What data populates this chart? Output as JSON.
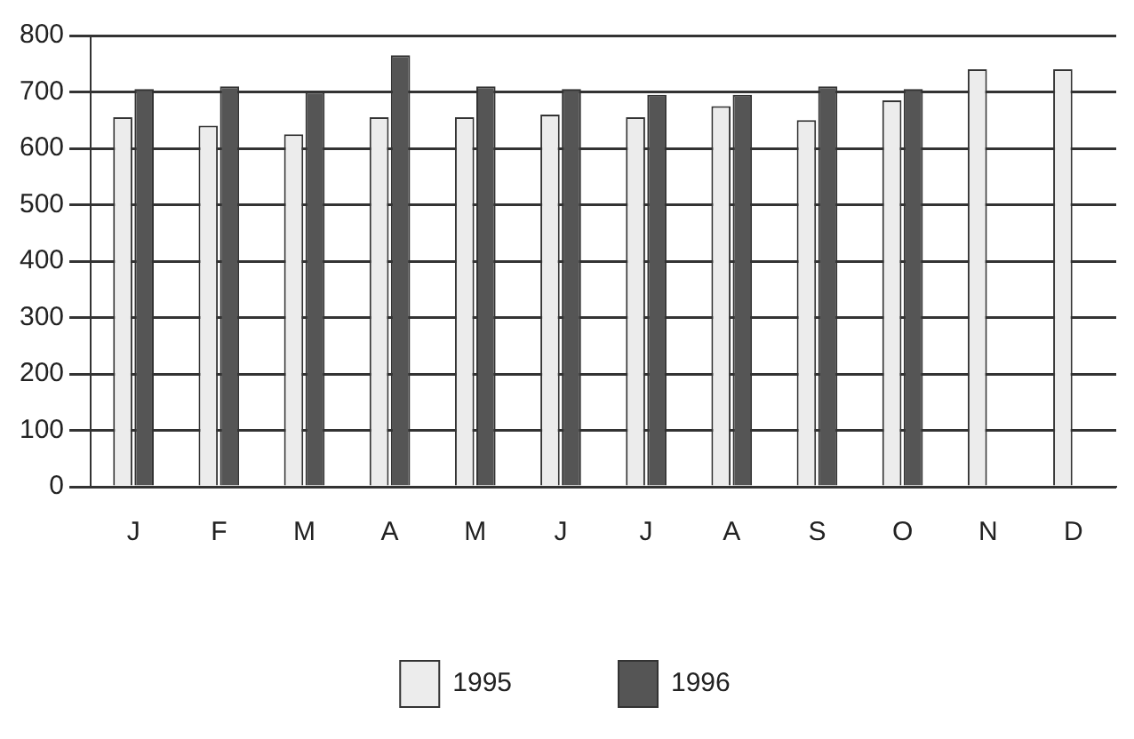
{
  "chart_data": {
    "type": "bar",
    "categories": [
      "J",
      "F",
      "M",
      "A",
      "M",
      "J",
      "J",
      "A",
      "S",
      "O",
      "N",
      "D"
    ],
    "series": [
      {
        "name": "1995",
        "color": "#ececec",
        "values": [
          655,
          640,
          625,
          655,
          655,
          660,
          655,
          675,
          650,
          685,
          740,
          740
        ]
      },
      {
        "name": "1996",
        "color": "#555555",
        "values": [
          705,
          710,
          700,
          765,
          710,
          705,
          695,
          695,
          710,
          705,
          null,
          null
        ]
      }
    ],
    "ylim": [
      0,
      800
    ],
    "yticks": [
      0,
      100,
      200,
      300,
      400,
      500,
      600,
      700,
      800
    ],
    "grid": "y",
    "legend": "bottom"
  }
}
